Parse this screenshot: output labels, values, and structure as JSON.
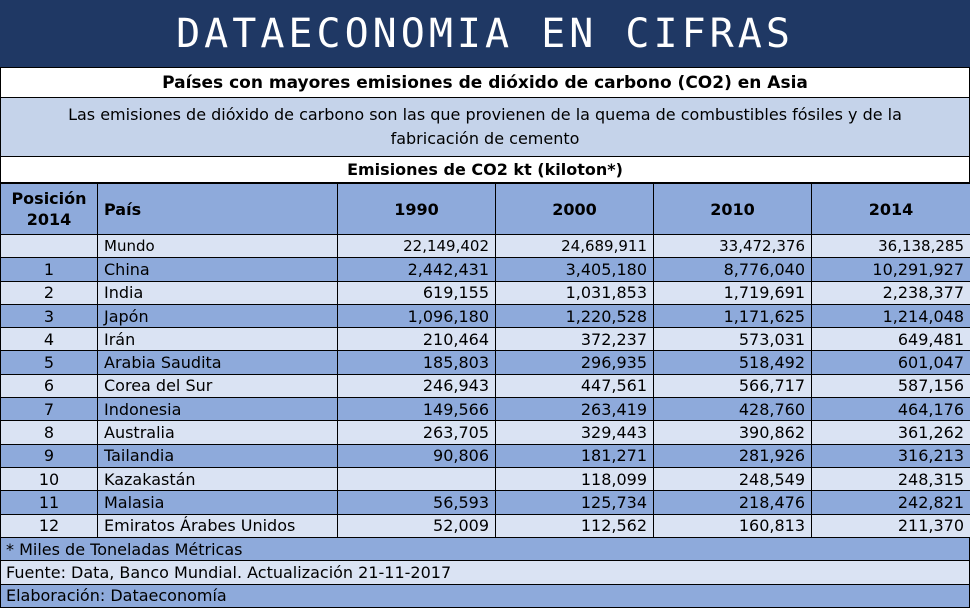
{
  "banner": "DATAECONOMIA EN CIFRAS",
  "title": "Países con mayores emisiones de dióxido de carbono (CO2) en Asia",
  "description": "Las emisiones de dióxido de carbono son las que provienen de la quema de combustibles fósiles y de la fabricación de cemento",
  "subheader": "Emisiones de CO2 kt (kiloton*)",
  "columns": {
    "pos_line1": "Posición",
    "pos_line2": "2014",
    "country": "País",
    "y1990": "1990",
    "y2000": "2000",
    "y2010": "2010",
    "y2014": "2014"
  },
  "rows": [
    {
      "pos": "",
      "country": "Mundo",
      "y1990": "22,149,402",
      "y2000": "24,689,911",
      "y2010": "33,472,376",
      "y2014": "36,138,285"
    },
    {
      "pos": "1",
      "country": "China",
      "y1990": "2,442,431",
      "y2000": "3,405,180",
      "y2010": "8,776,040",
      "y2014": "10,291,927"
    },
    {
      "pos": "2",
      "country": "India",
      "y1990": "619,155",
      "y2000": "1,031,853",
      "y2010": "1,719,691",
      "y2014": "2,238,377"
    },
    {
      "pos": "3",
      "country": "Japón",
      "y1990": "1,096,180",
      "y2000": "1,220,528",
      "y2010": "1,171,625",
      "y2014": "1,214,048"
    },
    {
      "pos": "4",
      "country": "Irán",
      "y1990": "210,464",
      "y2000": "372,237",
      "y2010": "573,031",
      "y2014": "649,481"
    },
    {
      "pos": "5",
      "country": "Arabia Saudita",
      "y1990": "185,803",
      "y2000": "296,935",
      "y2010": "518,492",
      "y2014": "601,047"
    },
    {
      "pos": "6",
      "country": "Corea del Sur",
      "y1990": "246,943",
      "y2000": "447,561",
      "y2010": "566,717",
      "y2014": "587,156"
    },
    {
      "pos": "7",
      "country": "Indonesia",
      "y1990": "149,566",
      "y2000": "263,419",
      "y2010": "428,760",
      "y2014": "464,176"
    },
    {
      "pos": "8",
      "country": "Australia",
      "y1990": "263,705",
      "y2000": "329,443",
      "y2010": "390,862",
      "y2014": "361,262"
    },
    {
      "pos": "9",
      "country": "Tailandia",
      "y1990": "90,806",
      "y2000": "181,271",
      "y2010": "281,926",
      "y2014": "316,213"
    },
    {
      "pos": "10",
      "country": "Kazakastán",
      "y1990": "",
      "y2000": "118,099",
      "y2010": "248,549",
      "y2014": "248,315"
    },
    {
      "pos": "11",
      "country": "Malasia",
      "y1990": "56,593",
      "y2000": "125,734",
      "y2010": "218,476",
      "y2014": "242,821"
    },
    {
      "pos": "12",
      "country": "Emiratos Árabes Unidos",
      "y1990": "52,009",
      "y2000": "112,562",
      "y2010": "160,813",
      "y2014": "211,370"
    }
  ],
  "footnotes": {
    "note": "* Miles de Toneladas Métricas",
    "source": "Fuente: Data, Banco Mundial. Actualización 21-11-2017",
    "author": "Elaboración: Dataeconomía"
  }
}
